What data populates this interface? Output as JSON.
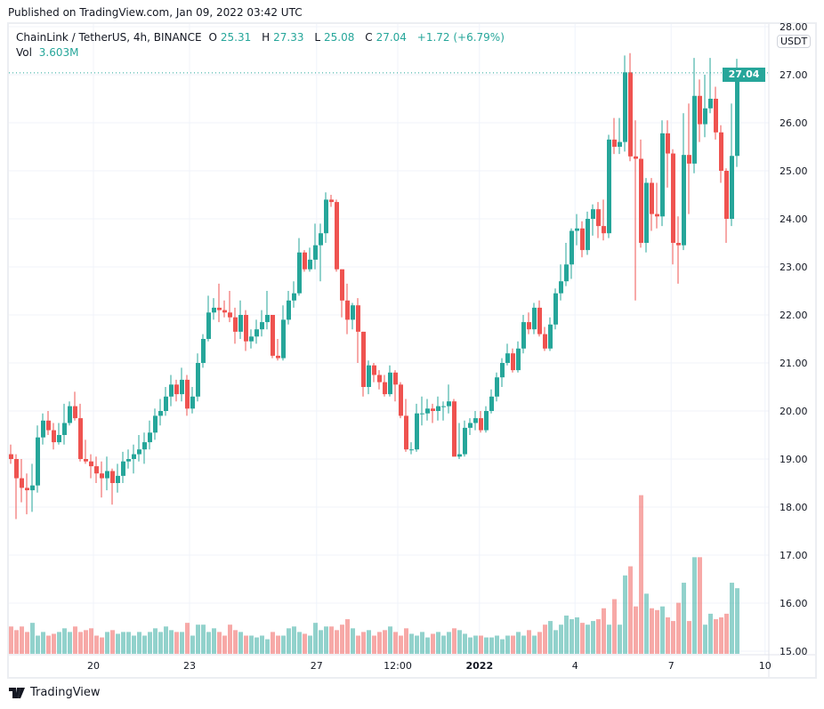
{
  "published": "Published on TradingView.com, Jan 09, 2022 03:42 UTC",
  "legend": {
    "symbol": "ChainLink / TetherUS, 4h, BINANCE",
    "o_label": "O",
    "o": "25.31",
    "h_label": "H",
    "h": "27.33",
    "l_label": "L",
    "l": "25.08",
    "c_label": "C",
    "c": "27.04",
    "change": "+1.72 (+6.79%)",
    "vol_label": "Vol",
    "vol": "3.603M"
  },
  "currency": "USDT",
  "last_price": "27.04",
  "footer_logo": "TradingView",
  "colors": {
    "up": "#26a69a",
    "down": "#ef5350",
    "grid": "#f0f3fa"
  },
  "chart_data": {
    "type": "candlestick",
    "title": "ChainLink / TetherUS, 4h, BINANCE",
    "ylim": [
      15,
      28
    ],
    "grid": true,
    "y_ticks": [
      "28.00",
      "27.00",
      "26.00",
      "25.00",
      "24.00",
      "23.00",
      "22.00",
      "21.00",
      "20.00",
      "19.00",
      "18.00",
      "17.00",
      "16.00",
      "15.00"
    ],
    "x_ticks": [
      {
        "label": "20",
        "index": 15.5
      },
      {
        "label": "23",
        "index": 33.5
      },
      {
        "label": "27",
        "index": 57.3
      },
      {
        "label": "12:00",
        "index": 72.5
      },
      {
        "label": "2022",
        "index": 87.8,
        "bold": true
      },
      {
        "label": "4",
        "index": 105.7
      },
      {
        "label": "7",
        "index": 123.7
      },
      {
        "label": "10",
        "index": 141.3
      }
    ],
    "volume_unit": "M",
    "candles_format": [
      "open",
      "high",
      "low",
      "close",
      "volume"
    ],
    "candles": [
      [
        19.1,
        19.3,
        18.9,
        19.0,
        1.5
      ],
      [
        19.0,
        19.1,
        17.75,
        18.6,
        1.3
      ],
      [
        18.6,
        19.0,
        18.1,
        18.4,
        1.5
      ],
      [
        18.4,
        18.7,
        17.85,
        18.35,
        1.2
      ],
      [
        18.35,
        18.9,
        17.9,
        18.45,
        1.7
      ],
      [
        18.45,
        19.7,
        18.3,
        19.45,
        1.0
      ],
      [
        19.45,
        19.95,
        19.3,
        19.8,
        1.2
      ],
      [
        19.8,
        20.0,
        19.5,
        19.6,
        1.0
      ],
      [
        19.6,
        19.75,
        19.2,
        19.35,
        1.1
      ],
      [
        19.35,
        19.75,
        19.3,
        19.5,
        1.2
      ],
      [
        19.5,
        20.15,
        19.3,
        19.75,
        1.4
      ],
      [
        19.75,
        20.2,
        19.7,
        20.1,
        1.2
      ],
      [
        20.1,
        20.4,
        19.8,
        19.85,
        1.5
      ],
      [
        19.85,
        20.15,
        18.95,
        19.0,
        1.2
      ],
      [
        19.0,
        19.4,
        18.9,
        18.95,
        1.3
      ],
      [
        18.95,
        19.1,
        18.6,
        18.85,
        1.4
      ],
      [
        18.85,
        19.05,
        18.5,
        18.7,
        1.0
      ],
      [
        18.7,
        18.95,
        18.2,
        18.6,
        0.9
      ],
      [
        18.6,
        19.05,
        18.35,
        18.75,
        1.2
      ],
      [
        18.75,
        18.8,
        18.05,
        18.5,
        1.3
      ],
      [
        18.5,
        18.9,
        18.3,
        18.65,
        1.1
      ],
      [
        18.65,
        19.15,
        18.5,
        18.95,
        1.2
      ],
      [
        18.95,
        19.2,
        18.8,
        19.0,
        1.2
      ],
      [
        19.0,
        19.3,
        18.7,
        19.1,
        1.0
      ],
      [
        19.1,
        19.5,
        18.95,
        19.2,
        1.2
      ],
      [
        19.2,
        19.55,
        18.9,
        19.35,
        1.0
      ],
      [
        19.35,
        19.8,
        19.2,
        19.55,
        1.2
      ],
      [
        19.55,
        20.05,
        19.4,
        19.9,
        1.4
      ],
      [
        19.9,
        20.25,
        19.7,
        20.0,
        1.2
      ],
      [
        20.0,
        20.5,
        19.9,
        20.3,
        1.5
      ],
      [
        20.3,
        20.75,
        20.1,
        20.55,
        1.3
      ],
      [
        20.55,
        20.65,
        20.2,
        20.35,
        1.2
      ],
      [
        20.35,
        20.9,
        20.2,
        20.65,
        1.2
      ],
      [
        20.65,
        20.75,
        19.9,
        20.05,
        1.7
      ],
      [
        20.05,
        20.5,
        19.95,
        20.3,
        1.0
      ],
      [
        20.3,
        21.2,
        20.2,
        21.0,
        1.6
      ],
      [
        21.0,
        21.6,
        20.9,
        21.5,
        1.6
      ],
      [
        21.5,
        22.4,
        21.45,
        22.05,
        1.2
      ],
      [
        22.05,
        22.35,
        21.9,
        22.15,
        1.4
      ],
      [
        22.15,
        22.65,
        21.85,
        22.1,
        1.2
      ],
      [
        22.1,
        22.3,
        21.95,
        22.05,
        1.0
      ],
      [
        22.05,
        22.5,
        21.85,
        21.95,
        1.6
      ],
      [
        21.95,
        22.15,
        21.4,
        21.65,
        1.3
      ],
      [
        21.65,
        22.3,
        21.5,
        22.0,
        1.2
      ],
      [
        22.0,
        22.1,
        21.25,
        21.45,
        1.0
      ],
      [
        21.45,
        21.7,
        21.3,
        21.55,
        1.0
      ],
      [
        21.55,
        21.9,
        21.4,
        21.7,
        0.9
      ],
      [
        21.7,
        22.1,
        21.55,
        21.85,
        1.0
      ],
      [
        21.85,
        22.5,
        21.7,
        22.0,
        0.8
      ],
      [
        22.0,
        22.0,
        21.1,
        21.15,
        1.2
      ],
      [
        21.15,
        21.5,
        21.05,
        21.1,
        1.0
      ],
      [
        21.1,
        22.2,
        21.05,
        21.9,
        1.0
      ],
      [
        21.9,
        22.5,
        21.8,
        22.3,
        1.4
      ],
      [
        22.3,
        22.7,
        22.15,
        22.45,
        1.5
      ],
      [
        22.45,
        23.6,
        22.4,
        23.3,
        1.2
      ],
      [
        23.3,
        23.35,
        22.9,
        22.95,
        1.1
      ],
      [
        22.95,
        23.4,
        22.9,
        23.15,
        1.0
      ],
      [
        23.15,
        23.9,
        22.95,
        23.45,
        1.7
      ],
      [
        23.45,
        23.9,
        22.7,
        23.7,
        1.3
      ],
      [
        23.7,
        24.55,
        23.5,
        24.4,
        1.5
      ],
      [
        24.4,
        24.5,
        24.25,
        24.35,
        1.5
      ],
      [
        24.35,
        24.4,
        22.9,
        22.95,
        1.3
      ],
      [
        22.95,
        22.95,
        21.95,
        22.3,
        1.6
      ],
      [
        22.3,
        22.65,
        21.6,
        21.9,
        1.9
      ],
      [
        21.9,
        22.25,
        21.7,
        22.2,
        1.4
      ],
      [
        22.2,
        22.35,
        21.0,
        21.65,
        1.0
      ],
      [
        21.65,
        21.65,
        20.3,
        20.5,
        1.2
      ],
      [
        20.5,
        21.05,
        20.35,
        20.95,
        1.3
      ],
      [
        20.95,
        21.0,
        20.6,
        20.75,
        1.0
      ],
      [
        20.75,
        20.85,
        20.45,
        20.6,
        1.2
      ],
      [
        20.6,
        20.75,
        20.3,
        20.35,
        1.3
      ],
      [
        20.35,
        20.95,
        20.3,
        20.8,
        1.5
      ],
      [
        20.8,
        20.85,
        20.2,
        20.55,
        1.2
      ],
      [
        20.55,
        20.6,
        19.85,
        19.9,
        1.0
      ],
      [
        19.9,
        20.25,
        19.15,
        19.2,
        1.4
      ],
      [
        19.2,
        19.35,
        19.1,
        19.2,
        1.1
      ],
      [
        19.2,
        20.15,
        19.15,
        19.95,
        1.0
      ],
      [
        19.95,
        20.3,
        19.7,
        19.95,
        1.2
      ],
      [
        19.95,
        20.25,
        19.8,
        20.05,
        0.9
      ],
      [
        20.05,
        20.15,
        19.75,
        20.0,
        1.1
      ],
      [
        20.0,
        20.3,
        19.8,
        20.1,
        1.2
      ],
      [
        20.1,
        20.2,
        19.8,
        20.1,
        1.0
      ],
      [
        20.1,
        20.55,
        19.95,
        20.2,
        1.2
      ],
      [
        20.2,
        20.25,
        19.05,
        19.05,
        1.4
      ],
      [
        19.05,
        19.75,
        19.0,
        19.1,
        1.3
      ],
      [
        19.1,
        19.8,
        19.05,
        19.65,
        1.1
      ],
      [
        19.65,
        19.85,
        19.5,
        19.75,
        0.9
      ],
      [
        19.75,
        20.0,
        19.6,
        19.85,
        1.0
      ],
      [
        19.85,
        20.0,
        19.55,
        19.6,
        1.0
      ],
      [
        19.6,
        20.1,
        19.55,
        20.0,
        0.9
      ],
      [
        20.0,
        20.45,
        19.95,
        20.3,
        0.9
      ],
      [
        20.3,
        20.8,
        20.2,
        20.7,
        1.0
      ],
      [
        20.7,
        21.1,
        20.5,
        21.0,
        0.8
      ],
      [
        21.0,
        21.4,
        20.95,
        21.2,
        1.0
      ],
      [
        21.2,
        21.3,
        20.8,
        20.85,
        1.0
      ],
      [
        20.85,
        21.45,
        20.8,
        21.3,
        1.2
      ],
      [
        21.3,
        22.0,
        21.2,
        21.85,
        1.0
      ],
      [
        21.85,
        22.05,
        21.6,
        21.7,
        1.3
      ],
      [
        21.7,
        22.25,
        21.6,
        22.15,
        1.0
      ],
      [
        22.15,
        22.3,
        21.55,
        21.6,
        1.2
      ],
      [
        21.6,
        21.75,
        21.25,
        21.3,
        1.6
      ],
      [
        21.3,
        21.95,
        21.25,
        21.8,
        1.8
      ],
      [
        21.8,
        22.55,
        21.7,
        22.45,
        1.3
      ],
      [
        22.45,
        23.05,
        22.3,
        22.7,
        1.6
      ],
      [
        22.7,
        23.5,
        22.6,
        23.05,
        2.1
      ],
      [
        23.05,
        23.8,
        22.75,
        23.75,
        1.9
      ],
      [
        23.75,
        24.1,
        23.45,
        23.8,
        2.0
      ],
      [
        23.8,
        23.95,
        23.2,
        23.35,
        1.7
      ],
      [
        23.35,
        24.15,
        23.25,
        24.0,
        1.6
      ],
      [
        24.0,
        24.3,
        23.65,
        24.2,
        1.8
      ],
      [
        24.2,
        24.35,
        23.6,
        23.85,
        1.9
      ],
      [
        23.85,
        24.4,
        23.55,
        23.7,
        2.5
      ],
      [
        23.7,
        25.75,
        23.6,
        25.65,
        1.6
      ],
      [
        25.65,
        26.1,
        25.35,
        25.5,
        3.0
      ],
      [
        25.5,
        26.1,
        25.35,
        25.6,
        1.6
      ],
      [
        25.6,
        27.4,
        25.4,
        27.05,
        4.3
      ],
      [
        27.05,
        27.45,
        25.2,
        25.3,
        4.8
      ],
      [
        25.3,
        26.05,
        22.3,
        25.25,
        2.6
      ],
      [
        25.25,
        25.65,
        23.4,
        23.5,
        8.7
      ],
      [
        23.5,
        24.85,
        23.3,
        24.75,
        3.3
      ],
      [
        24.75,
        24.85,
        23.75,
        24.1,
        2.5
      ],
      [
        24.1,
        24.75,
        23.8,
        24.05,
        2.4
      ],
      [
        24.05,
        26.05,
        23.85,
        25.78,
        2.6
      ],
      [
        25.78,
        26.05,
        24.65,
        25.36,
        2.0
      ],
      [
        25.36,
        25.45,
        23.05,
        23.5,
        1.8
      ],
      [
        23.5,
        24.05,
        22.65,
        23.45,
        2.8
      ],
      [
        23.45,
        26.2,
        23.35,
        25.33,
        3.9
      ],
      [
        25.33,
        26.4,
        24.1,
        25.15,
        1.8
      ],
      [
        25.15,
        27.35,
        24.95,
        26.56,
        5.3
      ],
      [
        26.56,
        26.9,
        25.6,
        25.97,
        5.3
      ],
      [
        25.97,
        27.0,
        25.7,
        26.3,
        1.6
      ],
      [
        26.3,
        27.35,
        26.2,
        26.5,
        2.2
      ],
      [
        26.5,
        26.75,
        25.65,
        25.8,
        1.9
      ],
      [
        25.8,
        25.95,
        24.75,
        25.0,
        2.0
      ],
      [
        25.0,
        25.05,
        23.5,
        24.0,
        2.2
      ],
      [
        24.0,
        26.4,
        23.85,
        25.31,
        3.9
      ],
      [
        25.31,
        27.33,
        25.08,
        27.04,
        3.6
      ]
    ]
  }
}
